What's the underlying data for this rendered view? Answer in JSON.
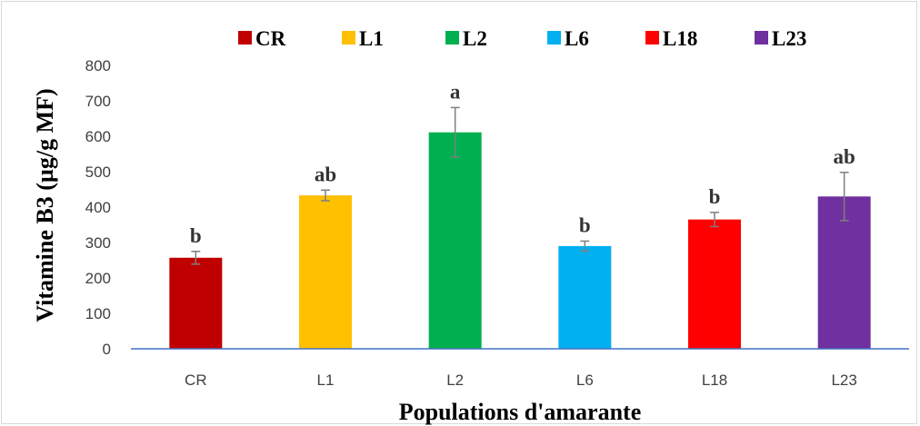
{
  "chart_data": {
    "type": "bar",
    "categories": [
      "CR",
      "L1",
      "L2",
      "L6",
      "L18",
      "L23"
    ],
    "values": [
      257,
      433,
      611,
      290,
      365,
      430
    ],
    "errors": [
      18,
      15,
      70,
      14,
      20,
      68
    ],
    "significance": [
      "b",
      "ab",
      "a",
      "b",
      "b",
      "ab"
    ],
    "colors": [
      "#c00000",
      "#ffc000",
      "#00b050",
      "#00b0f0",
      "#ff0000",
      "#7030a0"
    ],
    "legend": [
      "CR",
      "L1",
      "L2",
      "L6",
      "L18",
      "L23"
    ],
    "legend_position": "top",
    "xlabel": "Populations d'amarante",
    "ylabel": "Vitamine B3 (µg/g MF)",
    "ylim": [
      0,
      800
    ],
    "yticks": [
      0,
      100,
      200,
      300,
      400,
      500,
      600,
      700,
      800
    ],
    "grid": false,
    "axis_color": "#4472c4",
    "errorbar_color": "#7f7f7f"
  }
}
